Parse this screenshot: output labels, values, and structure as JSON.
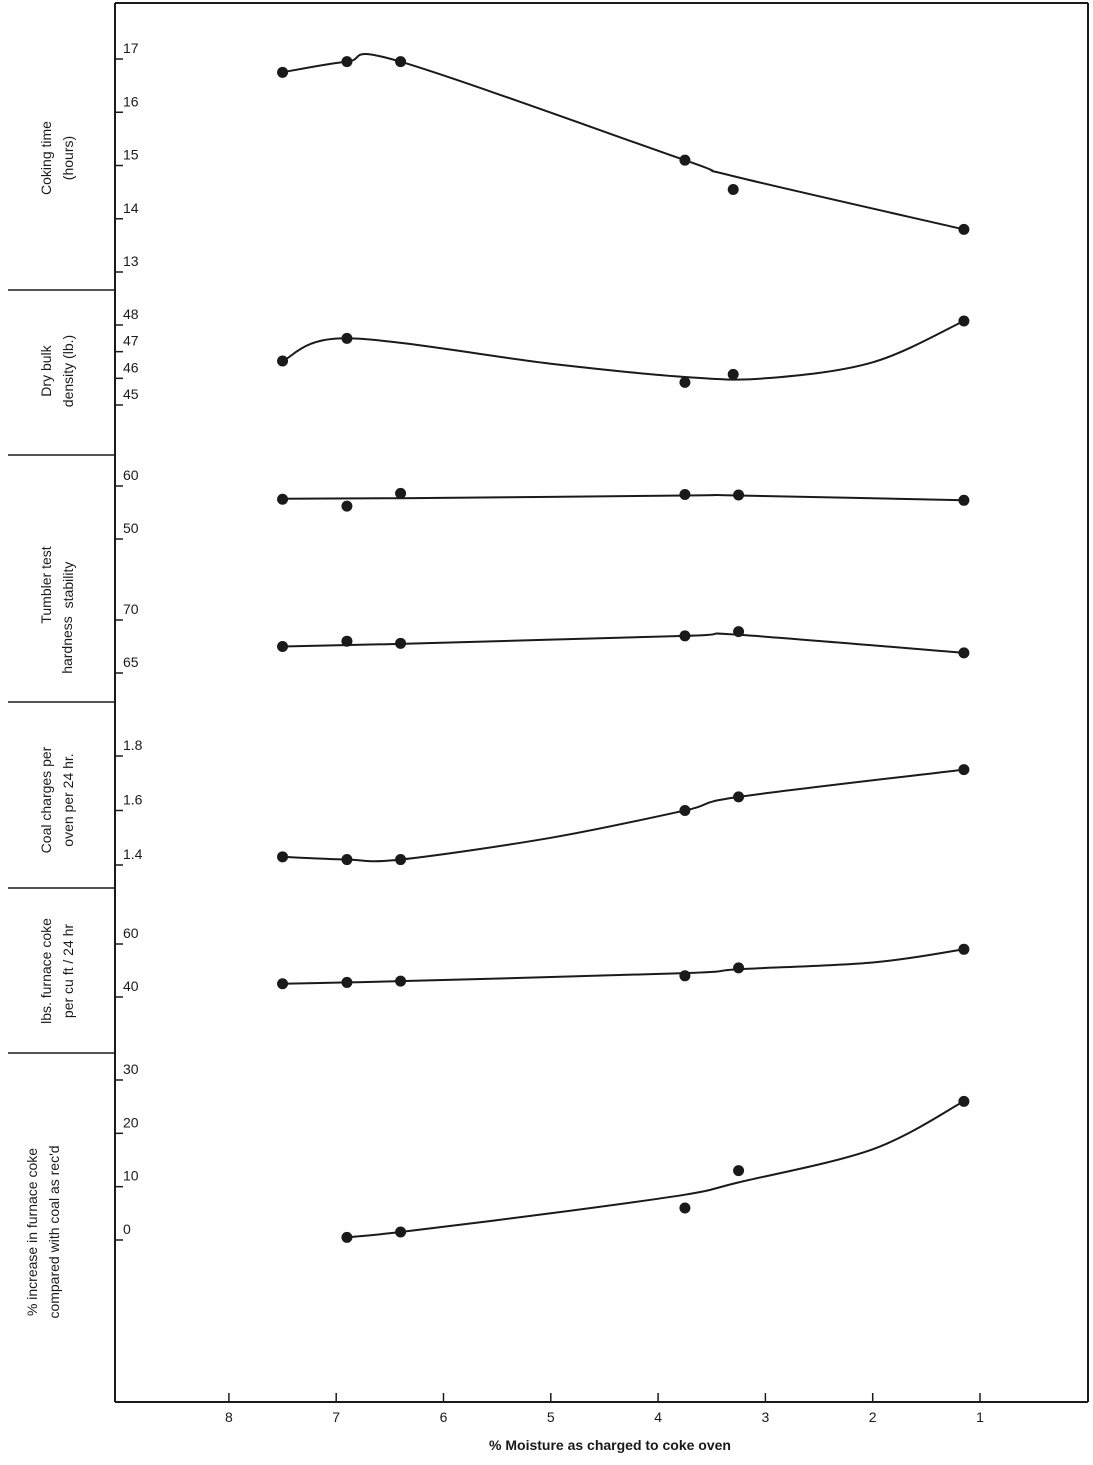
{
  "chart_data": {
    "type": "line",
    "xlabel": "% Moisture as charged to coke oven",
    "x_ticks": [
      8,
      7,
      6,
      5,
      4,
      3,
      2,
      1
    ],
    "xlim": [
      9.0,
      0.0
    ],
    "x_reversed": true,
    "grid": false,
    "panels": [
      {
        "id": "coking-time",
        "ylabel_lines": [
          "Coking time",
          "(hours)"
        ],
        "y_ticks": [
          13,
          14,
          15,
          16,
          17
        ],
        "points": [
          [
            7.5,
            16.75
          ],
          [
            6.9,
            16.95
          ],
          [
            6.4,
            16.95
          ],
          [
            3.75,
            15.1
          ],
          [
            3.3,
            14.55
          ],
          [
            1.15,
            13.8
          ]
        ],
        "curve": [
          [
            7.5,
            16.75
          ],
          [
            6.9,
            16.95
          ],
          [
            6.4,
            16.95
          ],
          [
            3.75,
            15.1
          ],
          [
            3.3,
            14.8
          ],
          [
            1.15,
            13.8
          ]
        ]
      },
      {
        "id": "dry-bulk-density",
        "ylabel_lines": [
          "Dry bulk",
          "density (lb.)"
        ],
        "y_ticks": [
          45,
          46,
          47,
          48
        ],
        "points": [
          [
            7.5,
            46.65
          ],
          [
            6.9,
            47.5
          ],
          [
            3.75,
            45.85
          ],
          [
            3.3,
            46.15
          ],
          [
            1.15,
            48.15
          ]
        ],
        "curve": [
          [
            7.5,
            46.65
          ],
          [
            6.9,
            47.5
          ],
          [
            5.0,
            46.55
          ],
          [
            3.75,
            46.05
          ],
          [
            3.0,
            46.0
          ],
          [
            2.0,
            46.6
          ],
          [
            1.15,
            48.15
          ]
        ]
      },
      {
        "id": "tumbler-stability",
        "ylabel_lines": [
          "Tumbler test",
          "stability"
        ],
        "y_ticks": [
          50,
          60
        ],
        "points": [
          [
            7.5,
            57.5
          ],
          [
            6.9,
            56.2
          ],
          [
            6.4,
            58.6
          ],
          [
            3.75,
            58.4
          ],
          [
            3.25,
            58.3
          ],
          [
            1.15,
            57.3
          ]
        ],
        "curve": [
          [
            7.5,
            57.6
          ],
          [
            6.4,
            57.7
          ],
          [
            3.75,
            58.2
          ],
          [
            3.25,
            58.2
          ],
          [
            1.15,
            57.3
          ]
        ]
      },
      {
        "id": "tumbler-hardness",
        "ylabel_lines": [
          "hardness"
        ],
        "y_ticks": [
          65,
          70
        ],
        "points": [
          [
            7.5,
            67.5
          ],
          [
            6.9,
            68.0
          ],
          [
            6.4,
            67.8
          ],
          [
            3.75,
            68.5
          ],
          [
            3.25,
            68.9
          ],
          [
            1.15,
            66.9
          ]
        ],
        "curve": [
          [
            7.5,
            67.5
          ],
          [
            6.4,
            67.75
          ],
          [
            3.75,
            68.5
          ],
          [
            3.25,
            68.6
          ],
          [
            1.15,
            66.9
          ]
        ]
      },
      {
        "id": "coal-charges",
        "ylabel_lines": [
          "Coal charges per",
          "oven per 24 hr."
        ],
        "y_ticks": [
          1.4,
          1.6,
          1.8
        ],
        "points": [
          [
            7.5,
            1.43
          ],
          [
            6.9,
            1.42
          ],
          [
            6.4,
            1.42
          ],
          [
            3.75,
            1.6
          ],
          [
            3.25,
            1.65
          ],
          [
            1.15,
            1.75
          ]
        ],
        "curve": [
          [
            7.5,
            1.43
          ],
          [
            6.9,
            1.42
          ],
          [
            6.4,
            1.42
          ],
          [
            5.0,
            1.5
          ],
          [
            3.75,
            1.6
          ],
          [
            3.25,
            1.65
          ],
          [
            1.15,
            1.75
          ]
        ]
      },
      {
        "id": "lbs-furnace-coke",
        "ylabel_lines": [
          "lbs. furnace coke",
          "per cu ft / 24 hr"
        ],
        "y_ticks": [
          40,
          60
        ],
        "points": [
          [
            7.5,
            45
          ],
          [
            6.9,
            45.5
          ],
          [
            6.4,
            46
          ],
          [
            3.75,
            48
          ],
          [
            3.25,
            51
          ],
          [
            1.15,
            58
          ]
        ],
        "curve": [
          [
            7.5,
            45
          ],
          [
            6.9,
            45.5
          ],
          [
            6.4,
            46
          ],
          [
            3.75,
            49
          ],
          [
            3.25,
            50.5
          ],
          [
            2.0,
            53
          ],
          [
            1.15,
            58
          ]
        ]
      },
      {
        "id": "pct-increase-furnace-coke",
        "ylabel_lines": [
          "% increase in furnace coke",
          "compared with coal as rec'd"
        ],
        "y_ticks": [
          0,
          10,
          20,
          30
        ],
        "points": [
          [
            6.9,
            0.5
          ],
          [
            6.4,
            1.5
          ],
          [
            3.75,
            6
          ],
          [
            3.25,
            13
          ],
          [
            1.15,
            26
          ]
        ],
        "curve": [
          [
            6.9,
            0.5
          ],
          [
            6.4,
            1.5
          ],
          [
            5.0,
            5
          ],
          [
            3.75,
            8.5
          ],
          [
            3.25,
            10.8
          ],
          [
            2.0,
            17
          ],
          [
            1.15,
            26
          ]
        ]
      }
    ]
  }
}
